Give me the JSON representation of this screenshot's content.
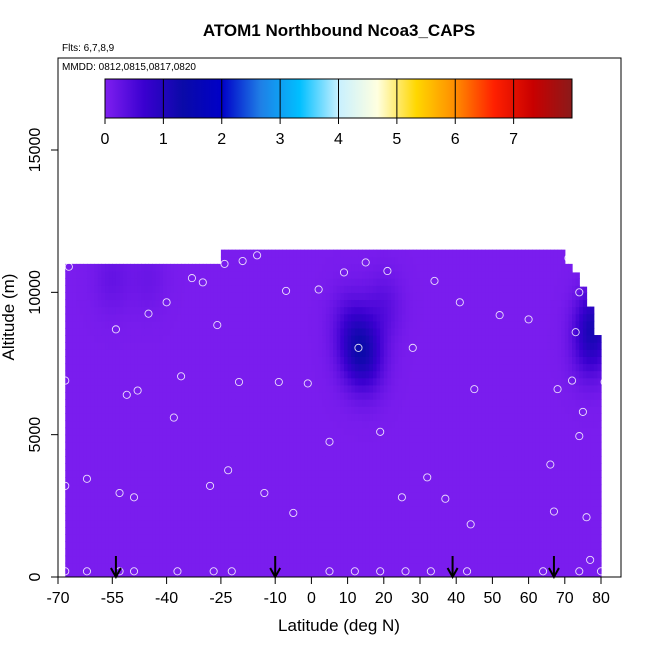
{
  "chart_data": {
    "type": "heatmap",
    "title": "ATOM1 Northbound Ncoa3_CAPS",
    "subtitle_flights": "Flts: 6,7,8,9",
    "subtitle_dates": "MMDD: 0812,0815,0817,0820",
    "xlabel": "Latitude (deg N)",
    "ylabel": "Altitude (m)",
    "x_ticks": [
      -70,
      -55,
      -40,
      -25,
      -10,
      0,
      10,
      20,
      30,
      40,
      50,
      60,
      70,
      80
    ],
    "x_tick_labels": [
      "-70",
      "-55",
      "-40",
      "-25",
      "-10",
      "0",
      "10",
      "20",
      "30",
      "40",
      "50",
      "60",
      "70",
      "80"
    ],
    "y_ticks": [
      0,
      5000,
      10000,
      15000
    ],
    "y_tick_labels": [
      "0",
      "5000",
      "10000",
      "15000"
    ],
    "xlim": [
      -70,
      83
    ],
    "ylim": [
      0,
      17500
    ],
    "colorbar": {
      "range": [
        0,
        8
      ],
      "ticks": [
        0,
        1,
        2,
        3,
        4,
        5,
        6,
        7
      ],
      "tick_labels": [
        "0",
        "1",
        "2",
        "3",
        "4",
        "5",
        "6",
        "7"
      ],
      "colors": [
        "#7f1ff0",
        "#3a00d0",
        "#0a0aa8",
        "#0000c8",
        "#1f7fe6",
        "#00bfff",
        "#c8f0ff",
        "#ffffe0",
        "#ffd700",
        "#ff8c00",
        "#ff2000",
        "#c80000",
        "#8b1a1a"
      ]
    },
    "background_value": 0.05,
    "coverage": [
      {
        "x0": -68,
        "x1": -25,
        "y_top": 11000
      },
      {
        "x0": -25,
        "x1": 70,
        "y_top": 11500
      },
      {
        "x0": 70,
        "x1": 72,
        "y_top": 11000
      },
      {
        "x0": 72,
        "x1": 74,
        "y_top": 10700
      },
      {
        "x0": 74,
        "x1": 76,
        "y_top": 10200
      },
      {
        "x0": 76,
        "x1": 78,
        "y_top": 9500
      },
      {
        "x0": 78,
        "x1": 80,
        "y_top": 8500
      }
    ],
    "enhanced_regions": [
      {
        "lat": 14,
        "alt": 8300,
        "value": 0.55
      },
      {
        "lat": 12,
        "alt": 7800,
        "value": 0.45
      },
      {
        "lat": 16,
        "alt": 7500,
        "value": 0.4
      },
      {
        "lat": 10,
        "alt": 9000,
        "value": 0.3
      },
      {
        "lat": 20,
        "alt": 9500,
        "value": 0.3
      },
      {
        "lat": 78,
        "alt": 9000,
        "value": 0.8
      },
      {
        "lat": 77,
        "alt": 8000,
        "value": 0.5
      },
      {
        "lat": -55,
        "alt": 10500,
        "value": 0.2
      },
      {
        "lat": -45,
        "alt": 10500,
        "value": 0.15
      }
    ],
    "samples": [
      [
        -67,
        10900
      ],
      [
        -68,
        6900
      ],
      [
        -68,
        3200
      ],
      [
        -68,
        200
      ],
      [
        -62,
        3450
      ],
      [
        -62,
        200
      ],
      [
        -54,
        8700
      ],
      [
        -53,
        2950
      ],
      [
        -53,
        200
      ],
      [
        -51,
        6400
      ],
      [
        -49,
        2800
      ],
      [
        -49,
        200
      ],
      [
        -48,
        6550
      ],
      [
        -45,
        9250
      ],
      [
        -40,
        9650
      ],
      [
        -38,
        5600
      ],
      [
        -37,
        200
      ],
      [
        -36,
        7050
      ],
      [
        -33,
        10500
      ],
      [
        -30,
        10350
      ],
      [
        -28,
        3200
      ],
      [
        -27,
        200
      ],
      [
        -26,
        8850
      ],
      [
        -24,
        11000
      ],
      [
        -23,
        3750
      ],
      [
        -22,
        200
      ],
      [
        -20,
        6850
      ],
      [
        -19,
        11100
      ],
      [
        -15,
        11300
      ],
      [
        -13,
        2950
      ],
      [
        -9,
        6850
      ],
      [
        -7,
        10050
      ],
      [
        -5,
        2250
      ],
      [
        -1,
        6800
      ],
      [
        2,
        10100
      ],
      [
        5,
        4750
      ],
      [
        5,
        200
      ],
      [
        9,
        10700
      ],
      [
        12,
        200
      ],
      [
        13,
        8050
      ],
      [
        15,
        11050
      ],
      [
        19,
        5100
      ],
      [
        19,
        200
      ],
      [
        21,
        10750
      ],
      [
        25,
        2800
      ],
      [
        26,
        200
      ],
      [
        28,
        8050
      ],
      [
        32,
        3500
      ],
      [
        33,
        200
      ],
      [
        34,
        10400
      ],
      [
        37,
        2750
      ],
      [
        41,
        9650
      ],
      [
        43,
        200
      ],
      [
        44,
        1850
      ],
      [
        45,
        6600
      ],
      [
        52,
        9200
      ],
      [
        60,
        9050
      ],
      [
        64,
        200
      ],
      [
        66,
        3950
      ],
      [
        67,
        2300
      ],
      [
        68,
        6600
      ],
      [
        71,
        11200
      ],
      [
        72,
        6900
      ],
      [
        73,
        8600
      ],
      [
        74,
        200
      ],
      [
        74,
        10000
      ],
      [
        74,
        4950
      ],
      [
        75,
        5800
      ],
      [
        76,
        2100
      ],
      [
        77,
        600
      ],
      [
        79,
        9950
      ],
      [
        80,
        200
      ],
      [
        81,
        6850
      ]
    ],
    "flight_arrows_lat": [
      -54,
      -10,
      39,
      67
    ]
  }
}
